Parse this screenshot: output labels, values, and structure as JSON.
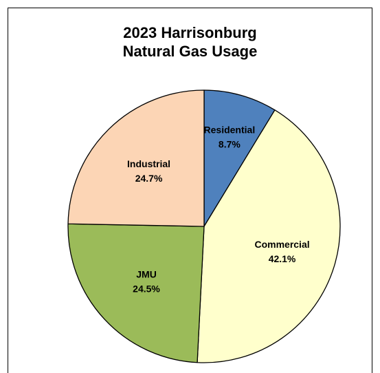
{
  "chart_data": {
    "type": "pie",
    "title_lines": [
      "2023 Harrisonburg",
      "Natural Gas Usage"
    ],
    "slices": [
      {
        "label": "Residential",
        "value": 8.7,
        "display": "8.7%",
        "color": "#4f81bd"
      },
      {
        "label": "Commercial",
        "value": 42.1,
        "display": "42.1%",
        "color": "#ffffcc"
      },
      {
        "label": "JMU",
        "value": 24.5,
        "display": "24.5%",
        "color": "#9bbb59"
      },
      {
        "label": "Industrial",
        "value": 24.7,
        "display": "24.7%",
        "color": "#fcd5b5"
      }
    ],
    "legend": "none",
    "start_angle": "12 o'clock, clockwise"
  }
}
